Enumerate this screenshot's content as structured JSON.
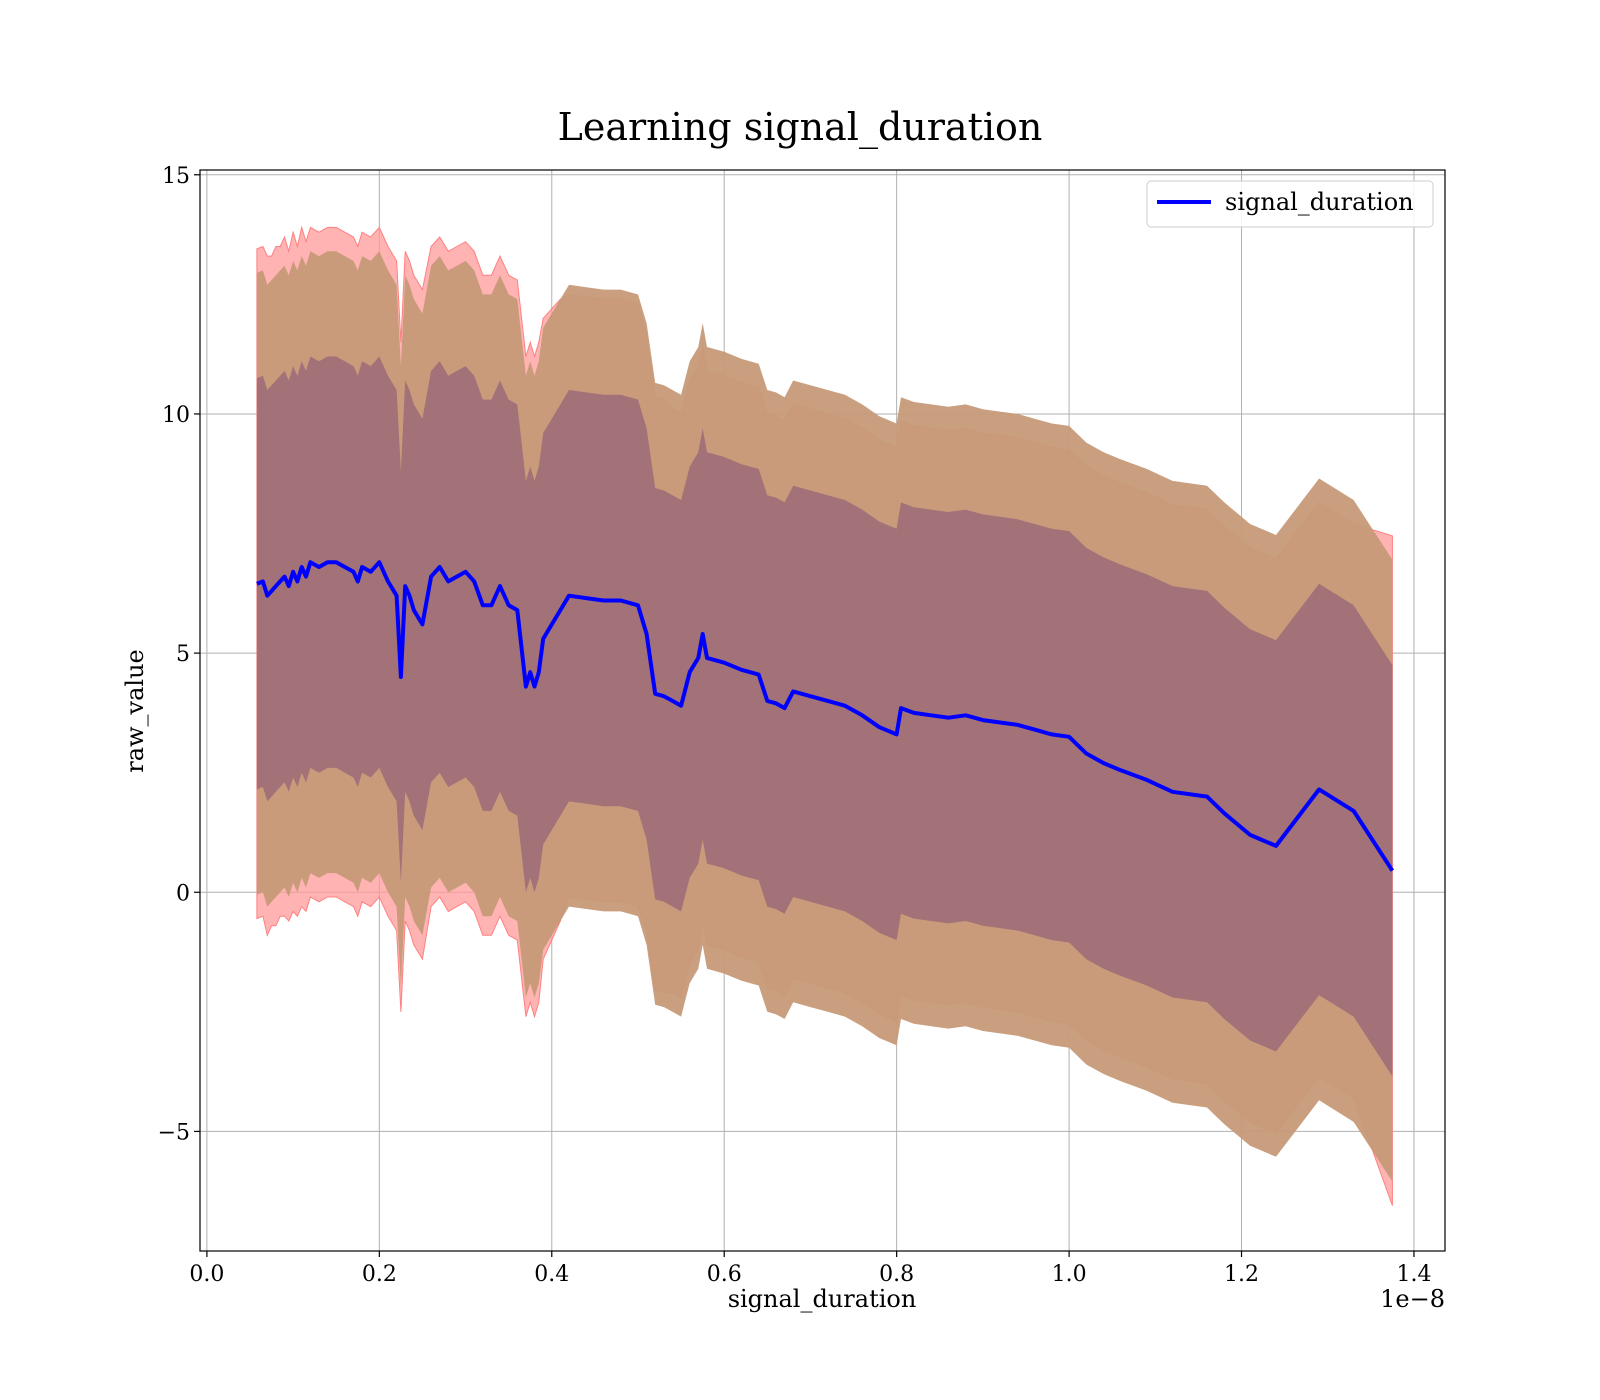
{
  "chart_data": {
    "type": "line",
    "title": "Learning signal_duration",
    "xlabel": "signal_duration",
    "ylabel": "raw_value",
    "x_offset_label": "1e−8",
    "x_scale": 1e-08,
    "xlim": [
      -0.008,
      1.436
    ],
    "ylim": [
      -7.5,
      15.1
    ],
    "x_ticks": [
      {
        "value": 0.0,
        "label": "0.0"
      },
      {
        "value": 0.2,
        "label": "0.2"
      },
      {
        "value": 0.4,
        "label": "0.4"
      },
      {
        "value": 0.6,
        "label": "0.6"
      },
      {
        "value": 0.8,
        "label": "0.8"
      },
      {
        "value": 1.0,
        "label": "1.0"
      },
      {
        "value": 1.2,
        "label": "1.2"
      },
      {
        "value": 1.4,
        "label": "1.4"
      }
    ],
    "y_ticks": [
      {
        "value": -5,
        "label": "−5"
      },
      {
        "value": 0,
        "label": "0"
      },
      {
        "value": 5,
        "label": "5"
      },
      {
        "value": 10,
        "label": "10"
      },
      {
        "value": 15,
        "label": "15"
      }
    ],
    "grid": true,
    "legend": {
      "position": "top-right",
      "entries": [
        "signal_duration"
      ]
    },
    "colors": {
      "line": "#0000ff",
      "outer_band": "#ff9999",
      "middle_band": "#c69a78",
      "inner_band": "#a07078",
      "grid": "#b0b0b0"
    },
    "series": [
      {
        "name": "signal_duration",
        "x": [
          0.058,
          0.065,
          0.07,
          0.075,
          0.08,
          0.085,
          0.09,
          0.095,
          0.1,
          0.105,
          0.11,
          0.115,
          0.12,
          0.13,
          0.14,
          0.15,
          0.16,
          0.17,
          0.175,
          0.18,
          0.19,
          0.2,
          0.21,
          0.22,
          0.225,
          0.23,
          0.235,
          0.24,
          0.25,
          0.26,
          0.27,
          0.28,
          0.29,
          0.3,
          0.31,
          0.32,
          0.33,
          0.34,
          0.35,
          0.36,
          0.37,
          0.375,
          0.38,
          0.385,
          0.39,
          0.4,
          0.41,
          0.42,
          0.44,
          0.46,
          0.48,
          0.5,
          0.51,
          0.52,
          0.53,
          0.54,
          0.55,
          0.56,
          0.57,
          0.575,
          0.58,
          0.6,
          0.62,
          0.64,
          0.65,
          0.66,
          0.67,
          0.68,
          0.7,
          0.72,
          0.74,
          0.76,
          0.78,
          0.8,
          0.805,
          0.82,
          0.84,
          0.86,
          0.88,
          0.9,
          0.92,
          0.94,
          0.96,
          0.98,
          1.0,
          1.02,
          1.04,
          1.06,
          1.09,
          1.12,
          1.16,
          1.18,
          1.21,
          1.24,
          1.29,
          1.33,
          1.375
        ],
        "values": [
          6.45,
          6.5,
          6.2,
          6.3,
          6.4,
          6.5,
          6.6,
          6.4,
          6.7,
          6.5,
          6.8,
          6.6,
          6.9,
          6.8,
          6.9,
          6.9,
          6.8,
          6.7,
          6.5,
          6.8,
          6.7,
          6.9,
          6.5,
          6.2,
          4.5,
          6.4,
          6.2,
          5.9,
          5.6,
          6.6,
          6.8,
          6.5,
          6.6,
          6.7,
          6.5,
          6.0,
          6.0,
          6.4,
          6.0,
          5.9,
          4.3,
          4.6,
          4.3,
          4.6,
          5.3,
          5.6,
          5.9,
          6.2,
          6.15,
          6.1,
          6.1,
          6.0,
          5.4,
          4.15,
          4.1,
          4.0,
          3.9,
          4.6,
          4.9,
          5.4,
          4.9,
          4.8,
          4.65,
          4.55,
          4.0,
          3.95,
          3.85,
          4.2,
          4.1,
          4.0,
          3.9,
          3.7,
          3.45,
          3.3,
          3.85,
          3.75,
          3.7,
          3.65,
          3.7,
          3.6,
          3.55,
          3.5,
          3.4,
          3.3,
          3.25,
          2.9,
          2.7,
          2.55,
          2.35,
          2.1,
          2.0,
          1.65,
          1.2,
          0.97,
          2.15,
          1.7,
          0.45
        ]
      }
    ],
    "bands": [
      {
        "label": "outer",
        "upper_offsets": [
          7.0,
          7.0,
          7.1,
          7.0,
          7.1,
          7.0,
          7.1,
          7.0,
          7.1,
          7.0,
          7.1,
          7.0,
          7.0,
          7.0,
          7.0,
          7.0,
          7.0,
          7.0,
          7.0,
          7.0,
          7.0,
          7.0,
          7.0,
          7.0,
          7.0,
          7.0,
          7.0,
          7.0,
          7.0,
          6.9,
          6.9,
          6.9,
          6.9,
          6.9,
          6.9,
          6.9,
          6.9,
          6.9,
          6.9,
          6.9,
          6.9,
          6.9,
          6.9,
          6.9,
          6.7,
          6.6,
          6.5,
          6.3,
          6.3,
          6.3,
          6.3,
          6.3,
          6.2,
          6.2,
          6.2,
          6.1,
          6.1,
          6.1,
          6.1,
          6.0,
          6.0,
          6.0,
          6.0,
          6.0,
          6.0,
          6.0,
          6.0,
          6.0,
          6.0,
          6.0,
          6.0,
          6.0,
          6.0,
          6.0,
          6.0,
          6.0,
          6.0,
          6.0,
          6.0,
          6.0,
          6.0,
          6.0,
          6.0,
          6.0,
          6.0,
          6.0,
          6.0,
          6.0,
          6.0,
          6.0,
          6.0,
          6.0,
          6.0,
          6.0,
          6.0,
          6.0,
          7.0
        ],
        "lower_offsets": [
          7.0,
          7.0,
          7.1,
          7.0,
          7.1,
          7.0,
          7.1,
          7.0,
          7.1,
          7.0,
          7.1,
          7.0,
          7.0,
          7.0,
          7.0,
          7.0,
          7.0,
          7.0,
          7.0,
          7.0,
          7.0,
          7.0,
          7.0,
          7.0,
          7.0,
          7.0,
          7.0,
          7.0,
          7.0,
          6.9,
          6.9,
          6.9,
          6.9,
          6.9,
          6.9,
          6.9,
          6.9,
          6.9,
          6.9,
          6.9,
          6.9,
          6.9,
          6.9,
          6.9,
          6.7,
          6.6,
          6.5,
          6.3,
          6.3,
          6.3,
          6.3,
          6.3,
          6.2,
          6.2,
          6.2,
          6.1,
          6.1,
          6.1,
          6.1,
          6.0,
          6.0,
          6.0,
          6.0,
          6.0,
          6.0,
          6.0,
          6.0,
          6.0,
          6.0,
          6.0,
          6.0,
          6.0,
          6.0,
          6.0,
          6.0,
          6.0,
          6.0,
          6.0,
          6.0,
          6.0,
          6.0,
          6.0,
          6.0,
          6.0,
          6.0,
          6.0,
          6.0,
          6.0,
          6.0,
          6.0,
          6.0,
          6.0,
          6.0,
          6.0,
          6.0,
          6.0,
          7.0
        ]
      },
      {
        "label": "middle",
        "upper_offset": 6.5,
        "lower_offset": 6.5
      },
      {
        "label": "inner",
        "upper_offset": 4.3,
        "lower_offset": 4.3
      }
    ]
  }
}
